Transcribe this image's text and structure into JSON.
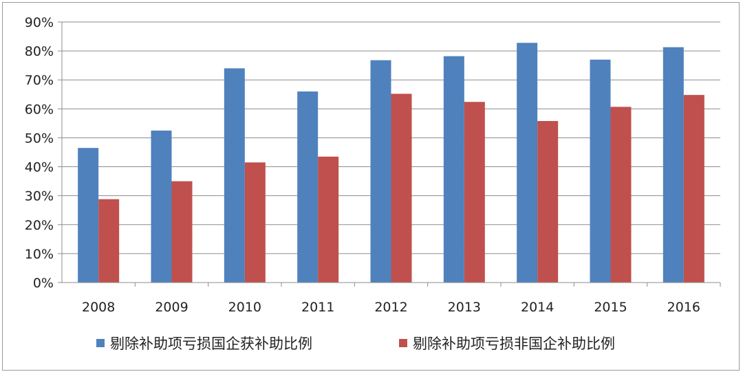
{
  "chart_data": {
    "type": "bar",
    "title": "",
    "xlabel": "",
    "ylabel": "",
    "categories": [
      "2008",
      "2009",
      "2010",
      "2011",
      "2012",
      "2013",
      "2014",
      "2015",
      "2016"
    ],
    "series": [
      {
        "name": "剔除补助项亏损国企获补助比例",
        "color": "#4f81bd",
        "values": [
          46.5,
          52.5,
          74.0,
          66.0,
          76.8,
          78.2,
          82.8,
          77.0,
          81.3
        ]
      },
      {
        "name": "剔除补助项亏损非国企补助比例",
        "color": "#c0504d",
        "values": [
          28.8,
          35.0,
          41.5,
          43.5,
          65.2,
          62.4,
          55.8,
          60.7,
          64.8
        ]
      }
    ],
    "ylim": [
      0,
      90
    ],
    "yticks": [
      "0%",
      "10%",
      "20%",
      "30%",
      "40%",
      "50%",
      "60%",
      "70%",
      "80%",
      "90%"
    ],
    "grid": true,
    "legend_position": "bottom"
  }
}
